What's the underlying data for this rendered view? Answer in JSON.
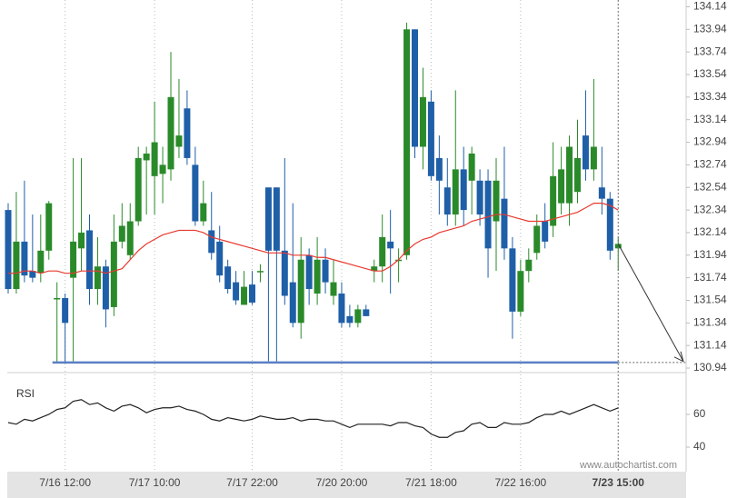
{
  "chart_data": {
    "type": "candlestick",
    "categories": [
      null,
      null,
      null,
      null,
      null,
      null,
      null,
      "7/16 12:00",
      null,
      null,
      null,
      null,
      null,
      null,
      null,
      null,
      null,
      null,
      "7/17 10:00",
      null,
      null,
      null,
      null,
      null,
      null,
      null,
      null,
      null,
      null,
      null,
      "7/17 22:00",
      null,
      null,
      null,
      null,
      null,
      null,
      null,
      null,
      null,
      null,
      "7/20 20:00",
      null,
      null,
      null,
      null,
      null,
      null,
      null,
      null,
      null,
      null,
      "7/21 18:00",
      null,
      null,
      null,
      null,
      null,
      null,
      null,
      null,
      null,
      null,
      "7/22 16:00",
      null,
      null,
      null,
      null,
      null,
      null,
      null,
      null,
      null,
      null,
      null,
      "7/23 15:00"
    ],
    "open": [
      132.34,
      131.64,
      132.06,
      131.8,
      131.78,
      131.98,
      131.55,
      131.56,
      131.74,
      132.0,
      132.16,
      131.64,
      131.84,
      131.48,
      132.06,
      131.94,
      132.24,
      132.78,
      132.64,
      132.66,
      132.7,
      132.9,
      133.24,
      132.74,
      132.24,
      132.16,
      132.06,
      131.84,
      131.7,
      131.5,
      131.68,
      131.8,
      132.54,
      132.54,
      131.98,
      131.7,
      131.34,
      131.94,
      131.6,
      131.9,
      131.58,
      131.6,
      131.4,
      131.34,
      131.46,
      131.8,
      131.84,
      132.06,
      131.9,
      131.94,
      133.94,
      132.9,
      133.3,
      132.8,
      132.54,
      132.3,
      132.7,
      132.6,
      132.6,
      132.6,
      132.24,
      132.44,
      132.0,
      131.44,
      131.8,
      131.96,
      132.24,
      132.2,
      132.4,
      132.4,
      132.5,
      133.0,
      132.7,
      132.54,
      132.44,
      132.0
    ],
    "high": [
      132.4,
      132.5,
      132.6,
      132.3,
      132.3,
      132.42,
      131.7,
      131.6,
      132.8,
      132.8,
      132.3,
      132.1,
      131.9,
      132.3,
      132.4,
      132.4,
      132.9,
      132.9,
      133.3,
      132.9,
      133.74,
      133.5,
      133.4,
      132.9,
      132.6,
      132.5,
      132.2,
      131.9,
      131.8,
      131.8,
      131.8,
      131.86,
      132.54,
      132.54,
      132.8,
      132.4,
      132.1,
      132.0,
      132.1,
      132.0,
      131.9,
      131.7,
      131.5,
      131.5,
      131.5,
      131.9,
      132.3,
      132.34,
      132.0,
      134.0,
      133.94,
      133.6,
      133.4,
      133.0,
      132.8,
      133.4,
      132.9,
      132.9,
      132.7,
      132.7,
      132.8,
      132.9,
      132.1,
      131.9,
      132.0,
      132.3,
      132.4,
      132.94,
      132.9,
      133.0,
      133.14,
      133.4,
      133.5,
      132.9,
      132.5,
      132.1
    ],
    "low": [
      131.6,
      131.6,
      131.7,
      131.7,
      131.7,
      131.9,
      130.98,
      130.98,
      131.0,
      131.8,
      131.5,
      131.5,
      131.3,
      131.4,
      132.0,
      131.9,
      132.2,
      132.3,
      132.3,
      132.4,
      132.6,
      132.8,
      132.74,
      132.2,
      132.2,
      131.9,
      131.7,
      131.6,
      131.5,
      131.5,
      131.5,
      131.7,
      131.0,
      131.0,
      131.5,
      131.3,
      131.2,
      131.5,
      131.5,
      131.6,
      131.5,
      131.3,
      131.3,
      131.3,
      131.4,
      131.7,
      131.7,
      131.6,
      131.7,
      131.9,
      132.8,
      132.7,
      132.6,
      132.3,
      132.2,
      132.2,
      132.2,
      132.3,
      132.2,
      131.74,
      131.8,
      131.9,
      131.2,
      131.4,
      131.7,
      131.9,
      132.0,
      132.1,
      132.3,
      132.2,
      132.4,
      132.6,
      132.6,
      132.3,
      131.9,
      131.8
    ],
    "close": [
      131.64,
      132.06,
      131.76,
      131.74,
      131.98,
      132.4,
      131.56,
      131.34,
      132.06,
      132.14,
      131.64,
      131.84,
      131.46,
      132.06,
      132.2,
      132.24,
      132.8,
      132.84,
      132.94,
      132.74,
      133.34,
      133.0,
      132.8,
      132.24,
      132.4,
      131.96,
      131.76,
      131.64,
      131.54,
      131.66,
      131.52,
      131.8,
      131.98,
      131.98,
      131.58,
      131.34,
      131.9,
      131.64,
      131.9,
      131.7,
      131.7,
      131.34,
      131.34,
      131.46,
      131.4,
      131.84,
      132.1,
      132.0,
      131.9,
      133.94,
      132.9,
      133.34,
      132.64,
      132.6,
      132.3,
      132.7,
      132.34,
      132.84,
      132.3,
      132.0,
      132.6,
      132.0,
      131.44,
      131.8,
      131.9,
      132.2,
      132.06,
      132.64,
      132.7,
      132.9,
      132.8,
      132.7,
      132.9,
      132.44,
      131.98,
      132.04
    ],
    "up_color": "#2a8a2a",
    "down_color": "#1f5fa8",
    "ma_values": [
      131.78,
      131.78,
      131.8,
      131.8,
      131.78,
      131.8,
      131.8,
      131.78,
      131.78,
      131.8,
      131.8,
      131.8,
      131.78,
      131.8,
      131.82,
      131.9,
      131.98,
      132.04,
      132.08,
      132.12,
      132.14,
      132.16,
      132.16,
      132.16,
      132.14,
      132.1,
      132.08,
      132.06,
      132.04,
      132.02,
      132.0,
      131.98,
      131.96,
      131.96,
      131.96,
      131.94,
      131.94,
      131.94,
      131.92,
      131.92,
      131.9,
      131.88,
      131.86,
      131.84,
      131.82,
      131.8,
      131.8,
      131.84,
      131.9,
      131.98,
      132.04,
      132.08,
      132.1,
      132.14,
      132.16,
      132.18,
      132.2,
      132.24,
      132.26,
      132.28,
      132.3,
      132.3,
      132.28,
      132.26,
      132.24,
      132.24,
      132.24,
      132.26,
      132.28,
      132.3,
      132.32,
      132.36,
      132.4,
      132.4,
      132.38,
      132.34
    ],
    "ma_color": "#e8392f",
    "support_level": 130.99,
    "support_color": "#5b7fc4",
    "ylim": [
      130.9,
      134.2
    ],
    "yticks": [
      134.14,
      133.94,
      133.74,
      133.54,
      133.34,
      133.14,
      132.94,
      132.74,
      132.54,
      132.34,
      132.14,
      131.94,
      131.74,
      131.54,
      131.34,
      131.14,
      130.94
    ],
    "rsi": {
      "label": "RSI",
      "values": [
        55,
        54,
        57,
        56,
        58,
        60,
        63,
        64,
        68,
        69,
        66,
        67,
        64,
        62,
        65,
        66,
        64,
        61,
        63,
        64,
        64,
        65,
        63,
        62,
        60,
        57,
        56,
        58,
        57,
        56,
        57,
        59,
        58,
        57,
        57,
        58,
        56,
        57,
        57,
        56,
        56,
        54,
        52,
        54,
        54,
        54,
        54,
        53,
        55,
        55,
        53,
        52,
        48,
        46,
        46,
        49,
        50,
        54,
        55,
        52,
        52,
        55,
        54,
        54,
        55,
        58,
        60,
        60,
        62,
        60,
        62,
        64,
        66,
        64,
        62,
        64
      ],
      "ylim": [
        25.6,
        84.4
      ],
      "yticks": [
        60,
        40
      ],
      "color": "#222222"
    },
    "watermark": "www.autochartist.com"
  }
}
